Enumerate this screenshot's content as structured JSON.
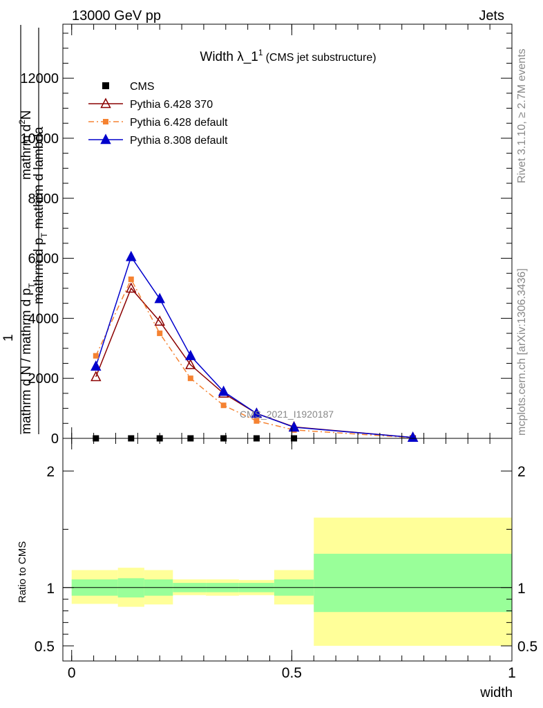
{
  "header": {
    "left": "13000 GeV pp",
    "right": "Jets"
  },
  "side": {
    "rivet": "Rivet 3.1.10, ≥ 2.7M events",
    "mcplots": "mcplots.cern.ch [arXiv:1306.3436]"
  },
  "chart_data": [
    {
      "type": "line",
      "title": "Width λ_1",
      "title_sup": "1",
      "subtitle": "(CMS jet substructure)",
      "watermark": "CMS_2021_I1920187",
      "ylabel": {
        "num_top": "mathrm d",
        "num_sup": "2",
        "num_after": "N",
        "den": "mathrm d p",
        "den_sub": "T",
        "den_after": " mathrm d lambda",
        "prefix": "1",
        "prefix_den": "mathrm d N / mathrm d p",
        "prefix_den_sub": "T"
      },
      "xlim": [
        -0.02,
        1.0
      ],
      "ylim": [
        0,
        13800
      ],
      "y_ticks": [
        0,
        2000,
        4000,
        6000,
        8000,
        10000,
        12000
      ],
      "y_tick_labels": [
        "0",
        "2000",
        "4000",
        "6000",
        "8000",
        "10000",
        "12000"
      ],
      "legend_position": "top-left",
      "series": [
        {
          "name": "CMS",
          "marker": "square",
          "color": "#000000",
          "x": [
            0.055,
            0.135,
            0.2,
            0.27,
            0.345,
            0.42,
            0.505,
            0.775
          ],
          "values": [
            0,
            0,
            0,
            0,
            0,
            0,
            0,
            0
          ]
        },
        {
          "name": "Pythia 6.428 370",
          "marker": "triangle-open",
          "color": "#8b0000",
          "line": "solid",
          "x": [
            0.055,
            0.135,
            0.2,
            0.27,
            0.345,
            0.42,
            0.505,
            0.775
          ],
          "values": [
            2050,
            5000,
            3900,
            2450,
            1500,
            830,
            380,
            30
          ]
        },
        {
          "name": "Pythia 6.428 default",
          "marker": "square",
          "color": "#f58231",
          "line": "dashdot",
          "x": [
            0.055,
            0.135,
            0.2,
            0.27,
            0.345,
            0.42,
            0.505,
            0.775
          ],
          "values": [
            2750,
            5300,
            3500,
            2000,
            1100,
            580,
            280,
            20
          ]
        },
        {
          "name": "Pythia 8.308 default",
          "marker": "triangle",
          "color": "#0000cc",
          "line": "solid",
          "x": [
            0.055,
            0.135,
            0.2,
            0.27,
            0.345,
            0.42,
            0.505,
            0.775
          ],
          "values": [
            2400,
            6050,
            4650,
            2750,
            1560,
            830,
            370,
            30
          ]
        }
      ]
    },
    {
      "type": "area",
      "ylabel": "Ratio to CMS",
      "xlabel": "width",
      "xlim": [
        -0.02,
        1.0
      ],
      "ylim": [
        0.37,
        2.28
      ],
      "y_ticks": [
        0.5,
        1,
        2
      ],
      "y_tick_labels": [
        "0.5",
        "1",
        "2"
      ],
      "x_ticks": [
        0,
        0.5,
        1
      ],
      "x_tick_labels": [
        "0",
        "0.5",
        "1"
      ],
      "reference_line": 1,
      "bands": [
        {
          "x0": 0.0,
          "x1": 0.105,
          "inner": [
            0.93,
            1.07
          ],
          "outer": [
            0.86,
            1.15
          ]
        },
        {
          "x0": 0.105,
          "x1": 0.165,
          "inner": [
            0.915,
            1.08
          ],
          "outer": [
            0.835,
            1.17
          ]
        },
        {
          "x0": 0.165,
          "x1": 0.23,
          "inner": [
            0.93,
            1.07
          ],
          "outer": [
            0.855,
            1.15
          ]
        },
        {
          "x0": 0.23,
          "x1": 0.305,
          "inner": [
            0.96,
            1.04
          ],
          "outer": [
            0.935,
            1.07
          ]
        },
        {
          "x0": 0.305,
          "x1": 0.38,
          "inner": [
            0.96,
            1.04
          ],
          "outer": [
            0.93,
            1.07
          ]
        },
        {
          "x0": 0.38,
          "x1": 0.46,
          "inner": [
            0.96,
            1.04
          ],
          "outer": [
            0.935,
            1.065
          ]
        },
        {
          "x0": 0.46,
          "x1": 0.55,
          "inner": [
            0.93,
            1.07
          ],
          "outer": [
            0.855,
            1.15
          ]
        },
        {
          "x0": 0.55,
          "x1": 1.0,
          "inner": [
            0.79,
            1.29
          ],
          "outer": [
            0.5,
            1.6
          ]
        }
      ],
      "colors": {
        "inner": "#99ff99",
        "outer": "#ffff99"
      }
    }
  ]
}
